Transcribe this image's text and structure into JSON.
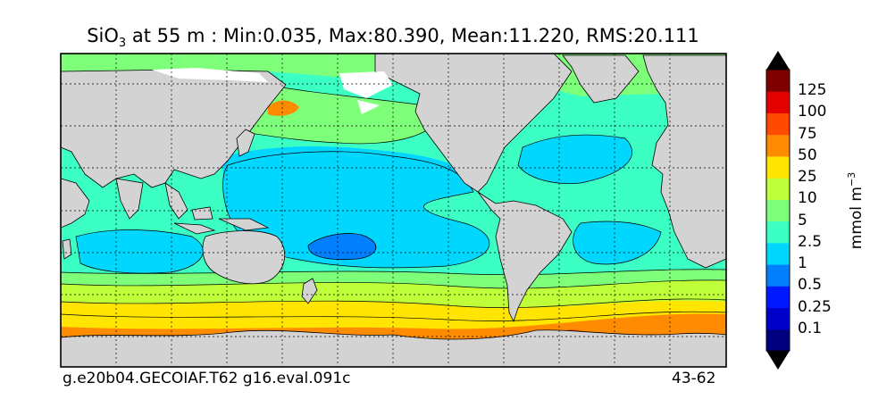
{
  "title": {
    "variable": "SiO",
    "subscript": "3",
    "rest": " at 55 m : Min:0.035, Max:80.390, Mean:11.220, RMS:20.111"
  },
  "footer": {
    "case_name": "g.e20b04.GECOIAF.T62 g16.eval.091c",
    "years": "43-62"
  },
  "colorbar": {
    "label": "mmol m",
    "label_exponent": "−3",
    "ticks": [
      "0.1",
      "0.25",
      "0.5",
      "1",
      "2.5",
      "5",
      "10",
      "25",
      "50",
      "75",
      "100",
      "125"
    ],
    "colors": [
      "#00007f",
      "#0000cc",
      "#0018ff",
      "#0080ff",
      "#00d7ff",
      "#3cffc4",
      "#7dff7a",
      "#beff39",
      "#ffe500",
      "#ff8c00",
      "#ff4a00",
      "#e50000",
      "#7f0000"
    ]
  },
  "map_colors": {
    "land": "#d3d3d3",
    "ice": "#ffffff",
    "gridline": "#000000"
  }
}
